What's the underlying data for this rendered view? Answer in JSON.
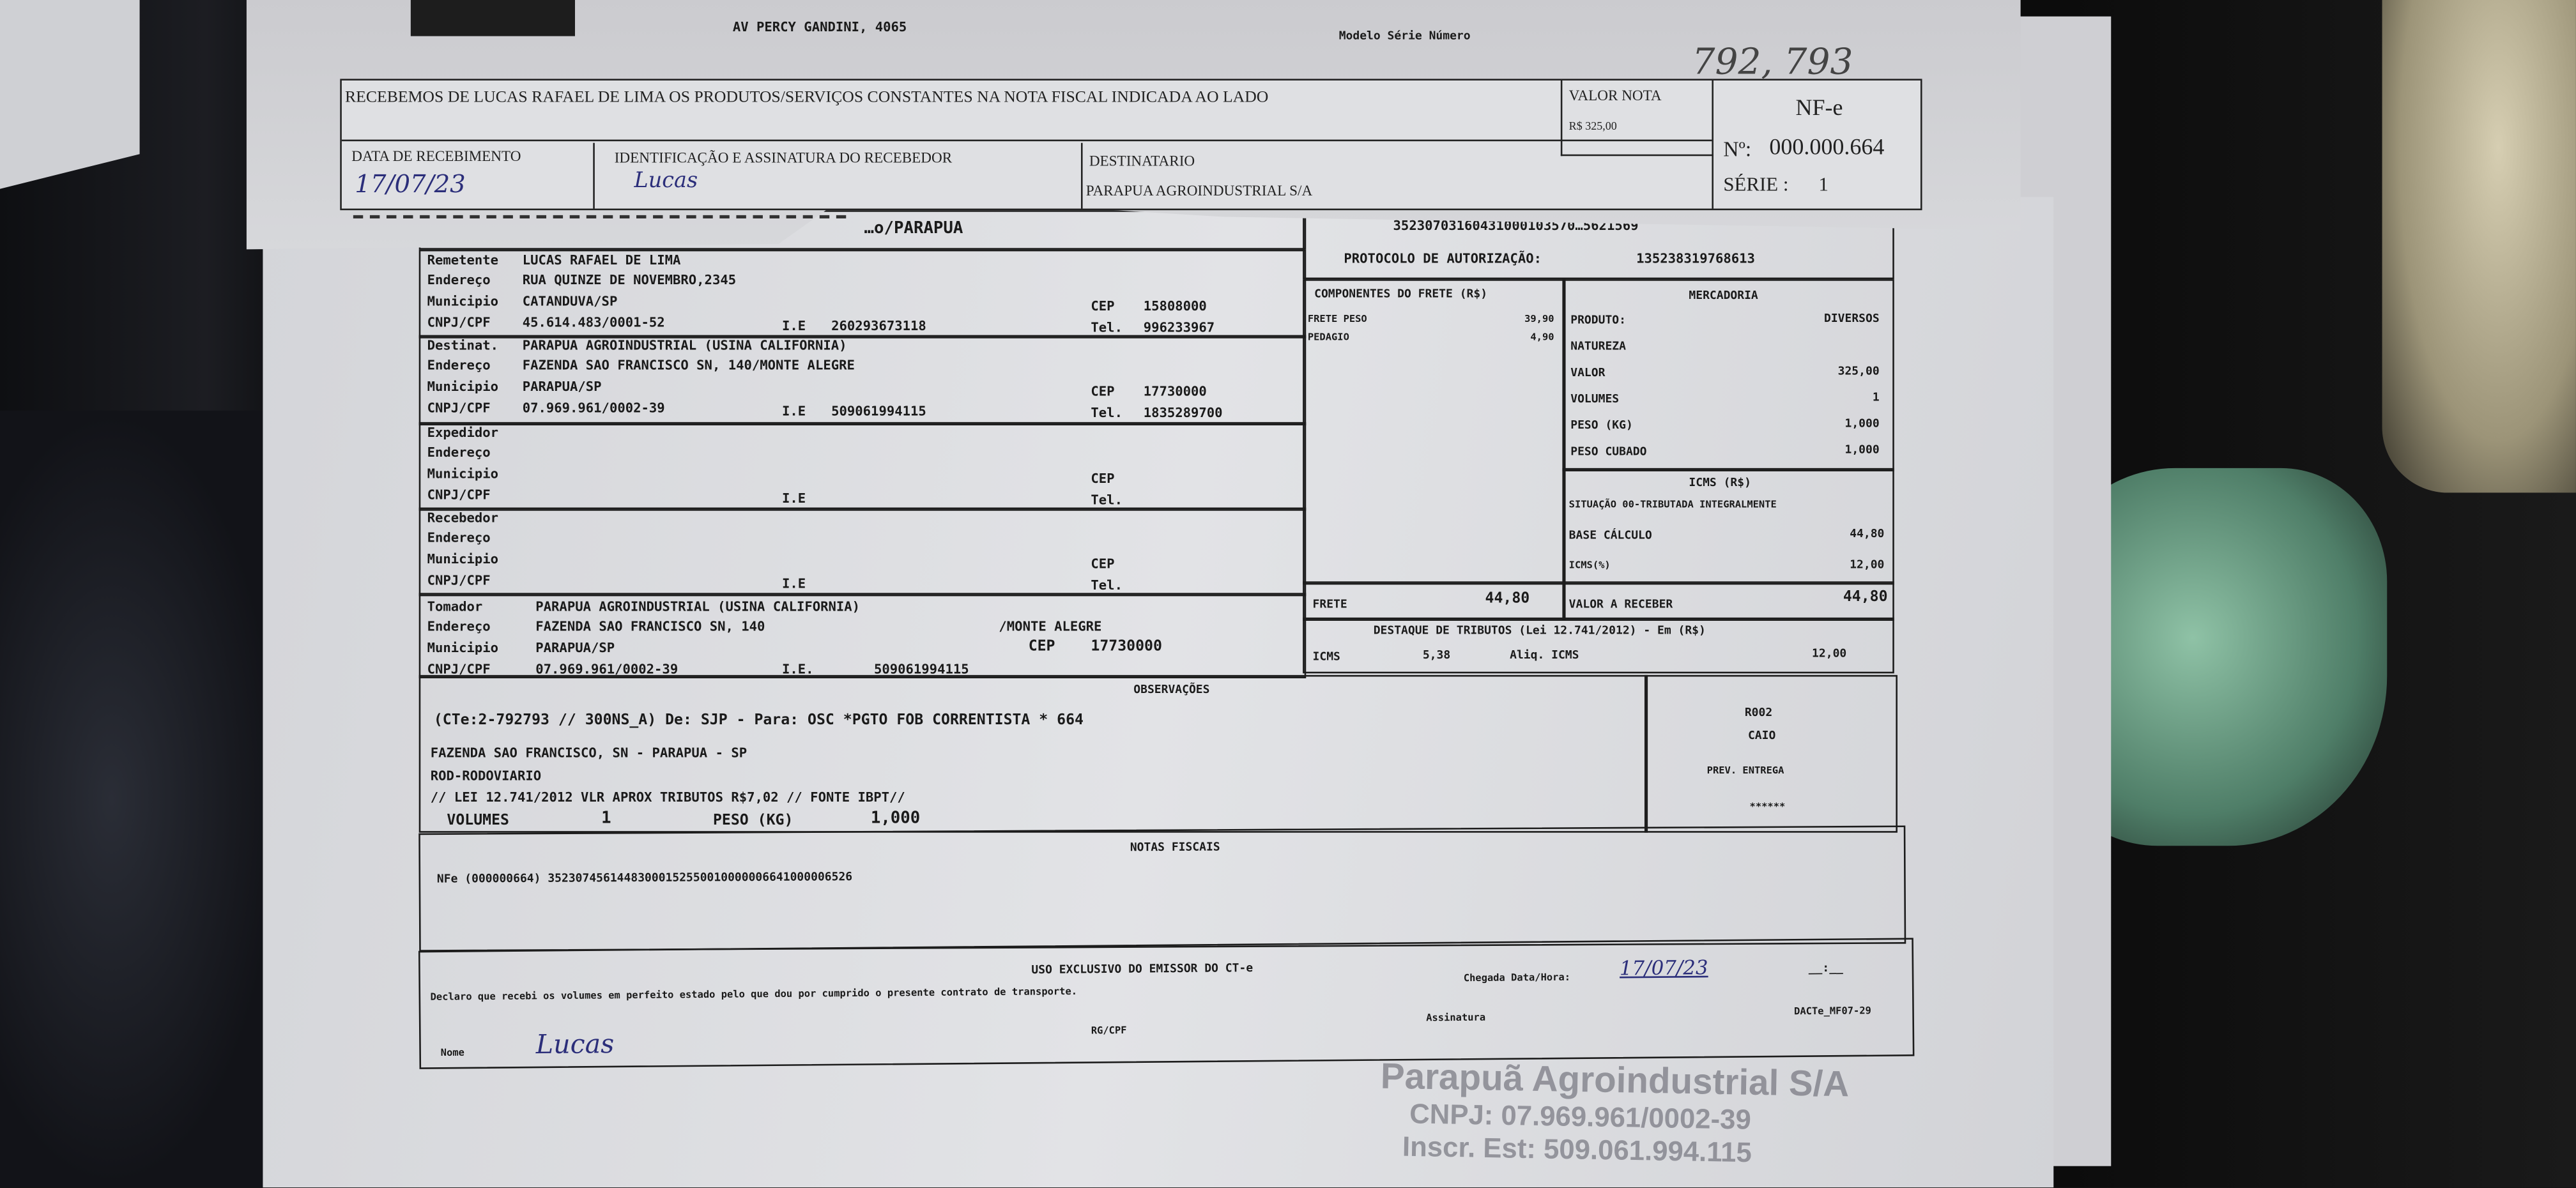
{
  "top_sheet": {
    "address": "AV PERCY GANDINI, 4065",
    "model_header": "Modelo  Série  Número",
    "handwritten_numbers": "792, 793"
  },
  "stub": {
    "receipt_text": "RECEBEMOS DE LUCAS RAFAEL DE LIMA OS PRODUTOS/SERVIÇOS CONSTANTES NA NOTA FISCAL INDICADA AO LADO",
    "valor_nota_label": "VALOR NOTA",
    "valor_nota": "R$ 325,00",
    "doc_type": "NF-e",
    "number_label": "Nº:",
    "number": "000.000.664",
    "serie_label": "SÉRIE :",
    "serie": "1",
    "data_recebimento_label": "DATA DE RECEBIMENTO",
    "data_recebimento": "17/07/23",
    "identificacao_label": "IDENTIFICAÇÃO E ASSINATURA DO RECEBEDOR",
    "signature": "Lucas",
    "destinatario_label": "DESTINATARIO",
    "destinatario": "PARAPUA AGROINDUSTRIAL S/A"
  },
  "header": {
    "partial_title": "…o/PARAPUA",
    "chave": "35230703160431000103570…5621569",
    "protocolo_label": "PROTOCOLO DE AUTORIZAÇÃO:",
    "protocolo": "135238319768613"
  },
  "parties": [
    {
      "role": "Remetente",
      "name": "LUCAS RAFAEL DE LIMA",
      "endereco": "RUA QUINZE DE NOVEMBRO,2345",
      "municipio": "CATANDUVA/SP",
      "cnpj": "45.614.483/0001-52",
      "ie": "260293673118",
      "cep": "15808000",
      "tel": "996233967"
    },
    {
      "role": "Destinat.",
      "name": "PARAPUA AGROINDUSTRIAL (USINA CALIFORNIA)",
      "endereco": "FAZENDA SAO FRANCISCO SN, 140/MONTE ALEGRE",
      "municipio": "PARAPUA/SP",
      "cnpj": "07.969.961/0002-39",
      "ie": "509061994115",
      "cep": "17730000",
      "tel": "1835289700"
    },
    {
      "role": "Expedidor",
      "name": "",
      "endereco": "",
      "municipio": "",
      "cnpj": "",
      "ie": "",
      "cep": "",
      "tel": ""
    },
    {
      "role": "Recebedor",
      "name": "",
      "endereco": "",
      "municipio": "",
      "cnpj": "",
      "ie": "",
      "cep": "",
      "tel": ""
    },
    {
      "role": "Tomador",
      "name": "PARAPUA AGROINDUSTRIAL (USINA CALIFORNIA)",
      "endereco": "FAZENDA SAO FRANCISCO SN, 140",
      "endereco_extra": "/MONTE ALEGRE",
      "municipio": "PARAPUA/SP",
      "cnpj": "07.969.961/0002-39",
      "ie": "509061994115",
      "cep": "17730000"
    }
  ],
  "labels": {
    "endereco": "Endereço",
    "municipio": "Municipio",
    "cnpj": "CNPJ/CPF",
    "ie": "I.E",
    "ie_dot": "I.E.",
    "cep": "CEP",
    "tel": "Tel."
  },
  "componentes": {
    "title": "COMPONENTES DO FRETE (R$)",
    "items": [
      {
        "label": "FRETE PESO",
        "value": "39,90"
      },
      {
        "label": "PEDAGIO",
        "value": "4,90"
      }
    ],
    "frete_label": "FRETE",
    "frete": "44,80"
  },
  "mercadoria": {
    "title": "MERCADORIA",
    "rows": [
      {
        "label": "PRODUTO:",
        "value": "DIVERSOS"
      },
      {
        "label": "NATUREZA",
        "value": ""
      },
      {
        "label": "VALOR",
        "value": "325,00"
      },
      {
        "label": "VOLUMES",
        "value": "1"
      },
      {
        "label": "PESO (KG)",
        "value": "1,000"
      },
      {
        "label": "PESO CUBADO",
        "value": "1,000"
      }
    ]
  },
  "icms": {
    "title": "ICMS (R$)",
    "situacao": "SITUAÇÃO 00-TRIBUTADA INTEGRALMENTE",
    "base_label": "BASE CÁLCULO",
    "base": "44,80",
    "pct_label": "ICMS(%)",
    "pct": "12,00",
    "valor_receber_label": "VALOR A RECEBER",
    "valor_receber": "44,80"
  },
  "destaque": {
    "title": "DESTAQUE DE TRIBUTOS (Lei 12.741/2012) - Em (R$)",
    "icms_label": "ICMS",
    "icms": "5,38",
    "aliq_label": "Aliq. ICMS",
    "aliq": "12,00"
  },
  "observacoes": {
    "title": "OBSERVAÇÕES",
    "lines": [
      "(CTe:2-792793 // 300NS_A)    De: SJP - Para: OSC *PGTO FOB CORRENTISTA * 664",
      "FAZENDA SAO FRANCISCO, SN - PARAPUA - SP",
      "ROD-RODOVIARIO",
      "// LEI 12.741/2012 VLR APROX TRIBUTOS R$7,02 // FONTE IBPT//"
    ],
    "volumes_label": "VOLUMES",
    "volumes": "1",
    "peso_label": "PESO (KG)",
    "peso": "1,000",
    "side": {
      "route": "R002",
      "driver": "CAIO",
      "prev_label": "PREV. ENTREGA",
      "prev": "******"
    }
  },
  "notas": {
    "title": "NOTAS FISCAIS",
    "line": "NFe (000000664) 35230745614483000152550010000006641000006526"
  },
  "uso": {
    "title": "USO EXCLUSIVO DO EMISSOR DO CT-e",
    "declaracao": "Declaro que recebi os volumes em perfeito estado pelo que dou por cumprido o presente contrato de transporte.",
    "chegada_label": "Chegada Data/Hora:",
    "chegada": "17/07/23",
    "hora": "__:__",
    "nome_label": "Nome",
    "rgcpf_label": "RG/CPF",
    "assinatura_label": "Assinatura",
    "form_code": "DACTe_MF07-29",
    "signature": "Lucas"
  },
  "stamp": {
    "line1": "Parapuã Agroindustrial S/A",
    "line2": "CNPJ: 07.969.961/0002-39",
    "line3": "Inscr. Est: 509.061.994.115"
  }
}
